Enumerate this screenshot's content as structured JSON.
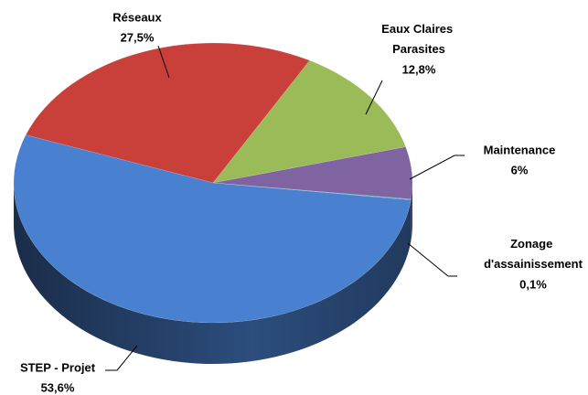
{
  "chart_data": {
    "type": "pie",
    "categories": [
      "Réseaux",
      "Eaux Claires Parasites",
      "Maintenance",
      "Zonage d'assainissement",
      "STEP - Projet"
    ],
    "values": [
      27.5,
      12.8,
      6,
      0.1,
      53.6
    ],
    "value_labels": [
      "27,5%",
      "12,8%",
      "6%",
      "0,1%",
      "53,6%"
    ],
    "colors": [
      "#c9403b",
      "#9bbb59",
      "#8064a2",
      "#4bacc6",
      "#4a80d0"
    ]
  }
}
